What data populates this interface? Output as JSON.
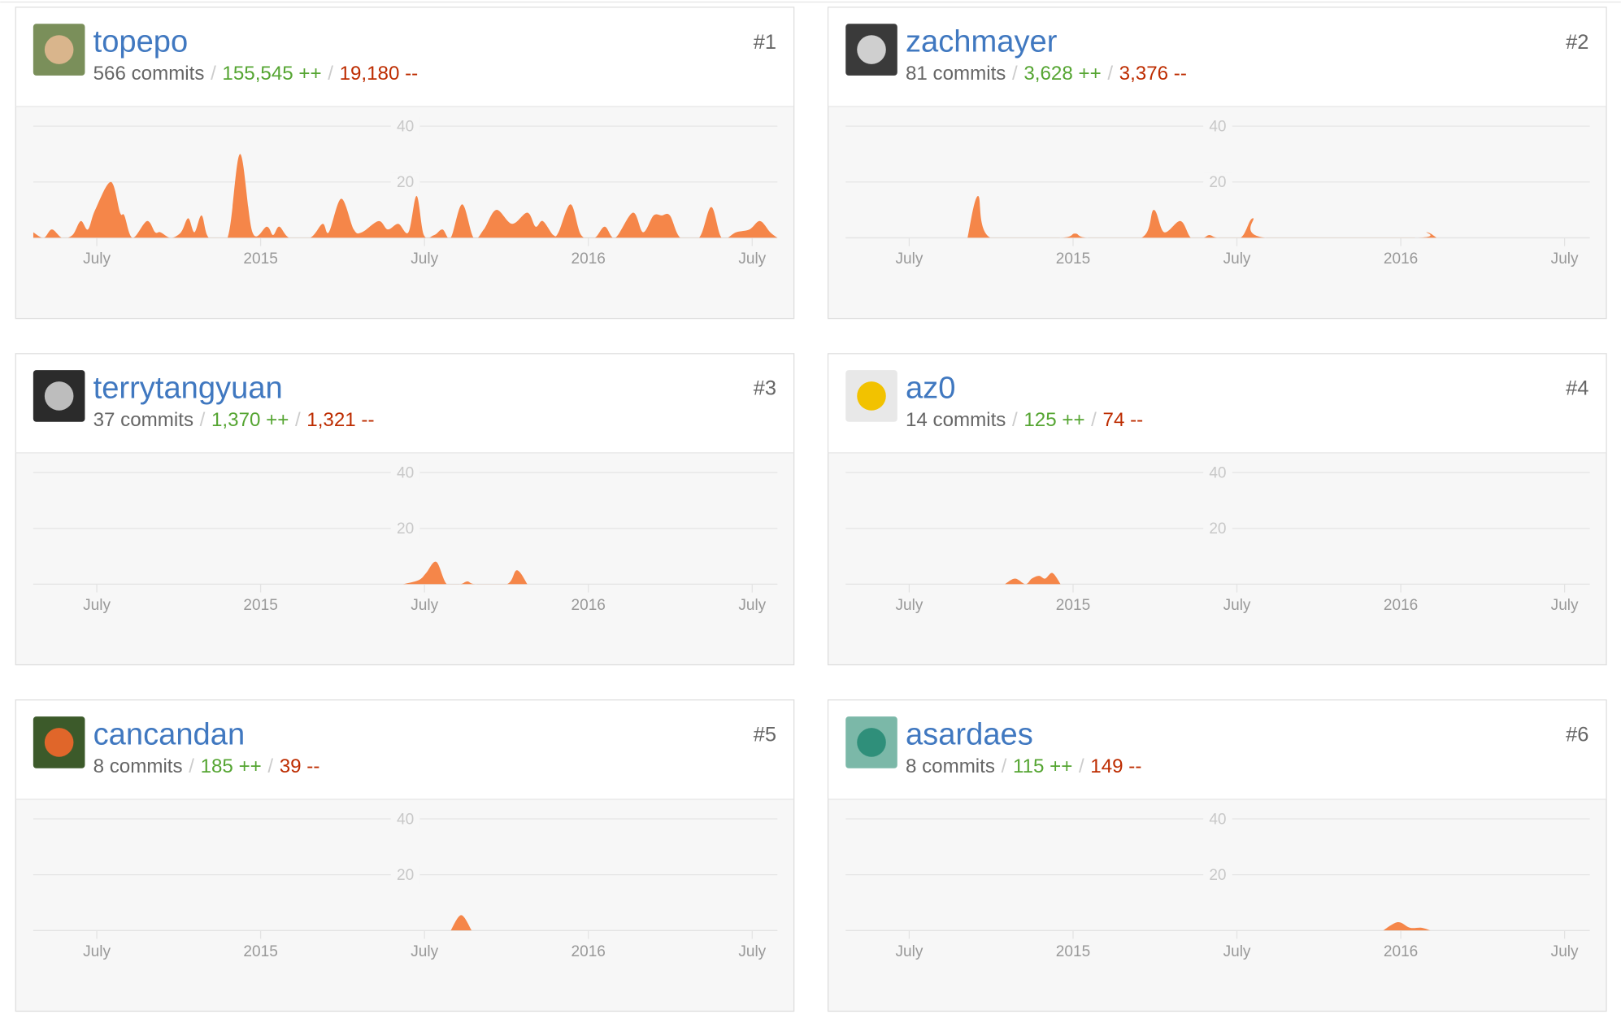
{
  "separator": "/",
  "chart_data": [
    {
      "type": "area",
      "title": "topepo",
      "rank": "#1",
      "commits": "566 commits",
      "additions": "155,545 ++",
      "deletions": "19,180 --",
      "color": "#f58649",
      "x": [
        2014.306,
        2014.338,
        2014.363,
        2014.394,
        2014.426,
        2014.451,
        2014.473,
        2014.495,
        2014.543,
        2014.571,
        2014.584,
        2014.609,
        2014.653,
        2014.678,
        2014.694,
        2014.726,
        2014.757,
        2014.779,
        2014.798,
        2014.82,
        2014.842,
        2014.899,
        2014.937,
        2014.975,
        2015.019,
        2015.038,
        2015.057,
        2015.088,
        2015.151,
        2015.189,
        2015.208,
        2015.246,
        2015.284,
        2015.309,
        2015.36,
        2015.388,
        2015.42,
        2015.451,
        2015.476,
        2015.498,
        2015.53,
        2015.555,
        2015.58,
        2015.615,
        2015.65,
        2015.681,
        2015.719,
        2015.767,
        2015.814,
        2015.839,
        2015.861,
        2015.893,
        2015.909,
        2015.946,
        2015.978,
        2016.019,
        2016.05,
        2016.082,
        2016.136,
        2016.167,
        2016.199,
        2016.224,
        2016.249,
        2016.281,
        2016.338,
        2016.375,
        2016.407,
        2016.451,
        2016.492,
        2016.524,
        2016.555,
        2016.577
      ],
      "values": [
        2,
        0,
        3,
        0,
        1,
        6,
        3,
        10,
        20,
        9,
        8,
        0,
        6,
        2,
        2,
        0,
        2,
        7,
        2,
        8,
        0,
        0,
        30,
        2,
        4,
        1,
        4,
        0,
        0,
        5,
        2,
        14,
        3,
        2,
        6,
        3,
        5,
        2,
        15,
        1,
        1,
        3,
        0,
        12,
        0,
        3,
        10,
        5,
        9,
        4,
        6,
        1,
        2,
        12,
        1,
        0,
        4,
        0,
        9,
        2,
        8,
        8,
        8,
        0,
        0,
        11,
        0,
        2,
        3,
        6,
        2,
        0
      ],
      "xlim": [
        2014.306,
        2016.577
      ],
      "xticks": [
        {
          "value": 2014.5,
          "label": "July"
        },
        2015,
        {
          "value": 2015.5,
          "label": "July"
        },
        2016,
        {
          "value": 2016.5,
          "label": "July"
        }
      ],
      "ylim": [
        0,
        44
      ],
      "yticks": [
        20,
        40
      ]
    },
    {
      "type": "area",
      "title": "zachmayer",
      "rank": "#2",
      "commits": "81 commits",
      "additions": "3,628 ++",
      "deletions": "3,376 --",
      "color": "#f58649",
      "x": [
        2014.678,
        2014.71,
        2014.748,
        2014.962,
        2015.006,
        2015.044,
        2015.208,
        2015.246,
        2015.278,
        2015.328,
        2015.36,
        2015.397,
        2015.416,
        2015.442,
        2015.511,
        2015.549,
        2015.587,
        2016.047,
        2016.079,
        2016.11
      ],
      "values": [
        0,
        15,
        0,
        0,
        1.5,
        0,
        0,
        10,
        2,
        6,
        0,
        0,
        1,
        0,
        0,
        7,
        0,
        0,
        2,
        0
      ],
      "xlim": [
        2014.306,
        2016.577
      ],
      "xticks": [
        {
          "value": 2014.5,
          "label": "July"
        },
        2015,
        {
          "value": 2015.5,
          "label": "July"
        },
        2016,
        {
          "value": 2016.5,
          "label": "July"
        }
      ],
      "ylim": [
        0,
        44
      ],
      "yticks": [
        20,
        40
      ]
    },
    {
      "type": "area",
      "title": "terrytangyuan",
      "rank": "#3",
      "commits": "37 commits",
      "additions": "1,370 ++",
      "deletions": "1,321 --",
      "color": "#f58649",
      "x": [
        2015.435,
        2015.483,
        2015.505,
        2015.536,
        2015.568,
        2015.609,
        2015.631,
        2015.656,
        2015.751,
        2015.782,
        2015.814
      ],
      "values": [
        0,
        1.5,
        4,
        8,
        0,
        0,
        1,
        0,
        0,
        5,
        0
      ],
      "xlim": [
        2014.306,
        2016.577
      ],
      "xticks": [
        {
          "value": 2014.5,
          "label": "July"
        },
        2015,
        {
          "value": 2015.5,
          "label": "July"
        },
        2016,
        {
          "value": 2016.5,
          "label": "July"
        }
      ],
      "ylim": [
        0,
        44
      ],
      "yticks": [
        20,
        40
      ]
    },
    {
      "type": "area",
      "title": "az0",
      "rank": "#4",
      "commits": "14 commits",
      "additions": "125 ++",
      "deletions": "74 --",
      "color": "#f58649",
      "x": [
        2014.792,
        2014.823,
        2014.855,
        2014.874,
        2014.896,
        2014.915,
        2014.937,
        2014.962
      ],
      "values": [
        0,
        2,
        0,
        2,
        3,
        2,
        4,
        0
      ],
      "xlim": [
        2014.306,
        2016.577
      ],
      "xticks": [
        {
          "value": 2014.5,
          "label": "July"
        },
        2015,
        {
          "value": 2015.5,
          "label": "July"
        },
        2016,
        {
          "value": 2016.5,
          "label": "July"
        }
      ],
      "ylim": [
        0,
        44
      ],
      "yticks": [
        20,
        40
      ]
    },
    {
      "type": "area",
      "title": "cancandan",
      "rank": "#5",
      "commits": "8 commits",
      "additions": "185 ++",
      "deletions": "39 --",
      "color": "#f58649",
      "x": [
        2015.58,
        2015.612,
        2015.644
      ],
      "values": [
        0,
        5.5,
        0
      ],
      "xlim": [
        2014.306,
        2016.577
      ],
      "xticks": [
        {
          "value": 2014.5,
          "label": "July"
        },
        2015,
        {
          "value": 2015.5,
          "label": "July"
        },
        2016,
        {
          "value": 2016.5,
          "label": "July"
        }
      ],
      "ylim": [
        0,
        44
      ],
      "yticks": [
        20,
        40
      ]
    },
    {
      "type": "area",
      "title": "asardaes",
      "rank": "#6",
      "commits": "8 commits",
      "additions": "115 ++",
      "deletions": "149 --",
      "color": "#f58649",
      "x": [
        2015.946,
        2015.991,
        2016.028,
        2016.063,
        2016.091
      ],
      "values": [
        0,
        3,
        1,
        1,
        0
      ],
      "xlim": [
        2014.306,
        2016.577
      ],
      "xticks": [
        {
          "value": 2014.5,
          "label": "July"
        },
        2015,
        {
          "value": 2015.5,
          "label": "July"
        },
        2016,
        {
          "value": 2016.5,
          "label": "July"
        }
      ],
      "ylim": [
        0,
        44
      ],
      "yticks": [
        20,
        40
      ]
    }
  ]
}
